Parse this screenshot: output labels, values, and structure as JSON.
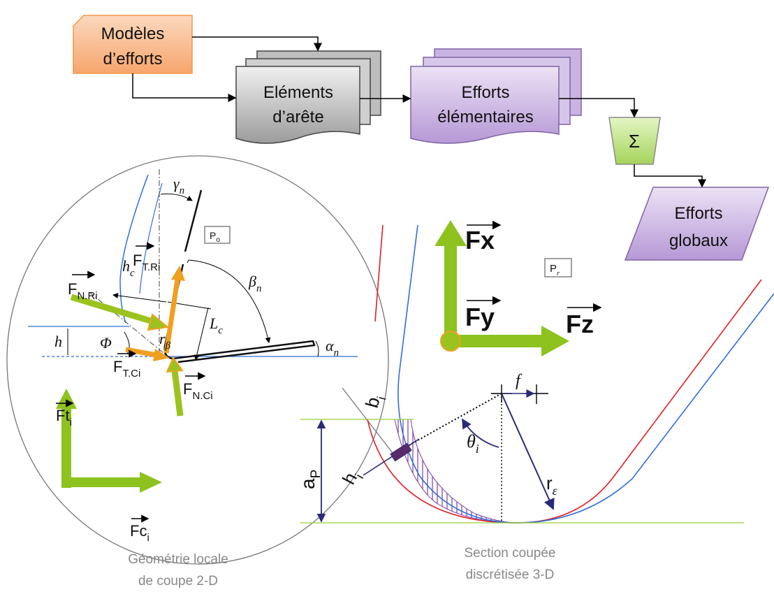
{
  "flowchart": {
    "nodes": [
      {
        "lines": [
          "Modèles",
          "d’efforts"
        ]
      },
      {
        "lines": [
          "Eléments",
          "d’arête"
        ]
      },
      {
        "lines": [
          "Efforts",
          "élémentaires"
        ]
      },
      {
        "lines": [
          "Σ"
        ]
      },
      {
        "lines": [
          "Efforts",
          "globaux"
        ]
      }
    ]
  },
  "captions": [
    [
      "Géométrie locale",
      "de coupe 2-D"
    ],
    [
      "Section coupée",
      "discrétisée 3-D"
    ]
  ],
  "labels": [
    {
      "main": "γ",
      "sub": "n"
    },
    {
      "main": "β",
      "sub": "n"
    },
    {
      "main": "α",
      "sub": "n"
    },
    {
      "main": "h",
      "sub": "c"
    },
    {
      "main": "L",
      "sub": "c"
    },
    {
      "main": "h"
    },
    {
      "main": "Φ"
    },
    {
      "main": "r",
      "sub": "β"
    },
    {
      "main": "P",
      "sub": "o"
    },
    {
      "main": "P",
      "sub": "r"
    },
    {
      "main": "F",
      "sub": "T.Ri"
    },
    {
      "main": "F",
      "sub": "N.Ri"
    },
    {
      "main": "F",
      "sub": "T.Ci"
    },
    {
      "main": "F",
      "sub": "N.Ci"
    },
    {
      "main": "Ft",
      "sub": "i"
    },
    {
      "main": "Fc",
      "sub": "i"
    },
    {
      "main": "Fx"
    },
    {
      "main": "Fy"
    },
    {
      "main": "Fz"
    },
    {
      "main": "b",
      "sub": "i"
    },
    {
      "main": "h",
      "sub": "i"
    },
    {
      "main": "a",
      "sub": "P"
    },
    {
      "main": "f"
    },
    {
      "main": "θ",
      "sub": "i"
    },
    {
      "main": "r",
      "sub": "ε"
    }
  ]
}
